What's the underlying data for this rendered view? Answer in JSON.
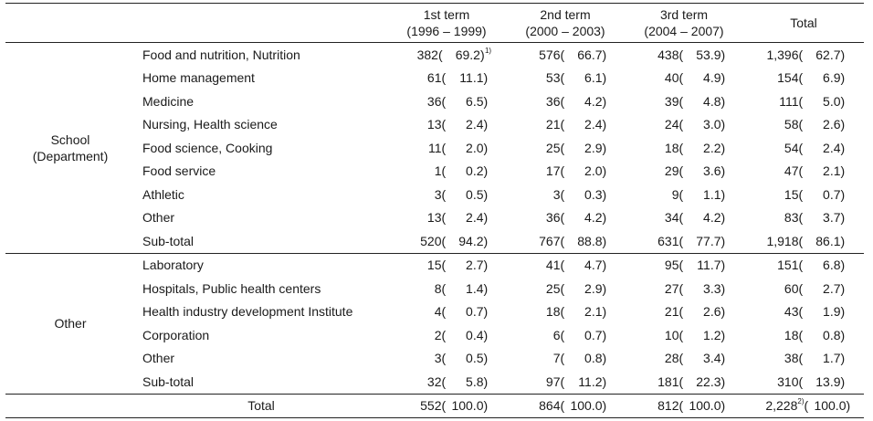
{
  "header": {
    "cols": [
      {
        "line1": "1st term",
        "line2": "(1996 – 1999)"
      },
      {
        "line1": "2nd term",
        "line2": "(2000 – 2003)"
      },
      {
        "line1": "3rd term",
        "line2": "(2004 – 2007)"
      },
      {
        "line1": "Total",
        "line2": ""
      }
    ]
  },
  "groups": [
    {
      "label_line1": "School",
      "label_line2": "(Department)",
      "rows": [
        {
          "item": "Food and nutrition, Nutrition",
          "cells": [
            [
              "382",
              "69.2",
              "1)"
            ],
            [
              "576",
              "66.7"
            ],
            [
              "438",
              "53.9"
            ],
            [
              "1,396",
              "62.7"
            ]
          ]
        },
        {
          "item": "Home management",
          "cells": [
            [
              "61",
              "11.1"
            ],
            [
              "53",
              "6.1"
            ],
            [
              "40",
              "4.9"
            ],
            [
              "154",
              "6.9"
            ]
          ]
        },
        {
          "item": "Medicine",
          "cells": [
            [
              "36",
              "6.5"
            ],
            [
              "36",
              "4.2"
            ],
            [
              "39",
              "4.8"
            ],
            [
              "111",
              "5.0"
            ]
          ]
        },
        {
          "item": "Nursing, Health science",
          "cells": [
            [
              "13",
              "2.4"
            ],
            [
              "21",
              "2.4"
            ],
            [
              "24",
              "3.0"
            ],
            [
              "58",
              "2.6"
            ]
          ]
        },
        {
          "item": "Food science, Cooking",
          "cells": [
            [
              "11",
              "2.0"
            ],
            [
              "25",
              "2.9"
            ],
            [
              "18",
              "2.2"
            ],
            [
              "54",
              "2.4"
            ]
          ]
        },
        {
          "item": "Food service",
          "cells": [
            [
              "1",
              "0.2"
            ],
            [
              "17",
              "2.0"
            ],
            [
              "29",
              "3.6"
            ],
            [
              "47",
              "2.1"
            ]
          ]
        },
        {
          "item": "Athletic",
          "cells": [
            [
              "3",
              "0.5"
            ],
            [
              "3",
              "0.3"
            ],
            [
              "9",
              "1.1"
            ],
            [
              "15",
              "0.7"
            ]
          ]
        },
        {
          "item": "Other",
          "cells": [
            [
              "13",
              "2.4"
            ],
            [
              "36",
              "4.2"
            ],
            [
              "34",
              "4.2"
            ],
            [
              "83",
              "3.7"
            ]
          ]
        },
        {
          "item": "Sub-total",
          "cells": [
            [
              "520",
              "94.2"
            ],
            [
              "767",
              "88.8"
            ],
            [
              "631",
              "77.7"
            ],
            [
              "1,918",
              "86.1"
            ]
          ]
        }
      ]
    },
    {
      "label_line1": "Other",
      "label_line2": "",
      "rows": [
        {
          "item": "Laboratory",
          "cells": [
            [
              "15",
              "2.7"
            ],
            [
              "41",
              "4.7"
            ],
            [
              "95",
              "11.7"
            ],
            [
              "151",
              "6.8"
            ]
          ]
        },
        {
          "item": "Hospitals, Public health centers",
          "cells": [
            [
              "8",
              "1.4"
            ],
            [
              "25",
              "2.9"
            ],
            [
              "27",
              "3.3"
            ],
            [
              "60",
              "2.7"
            ]
          ]
        },
        {
          "item": "Health industry development Institute",
          "cells": [
            [
              "4",
              "0.7"
            ],
            [
              "18",
              "2.1"
            ],
            [
              "21",
              "2.6"
            ],
            [
              "43",
              "1.9"
            ]
          ]
        },
        {
          "item": "Corporation",
          "cells": [
            [
              "2",
              "0.4"
            ],
            [
              "6",
              "0.7"
            ],
            [
              "10",
              "1.2"
            ],
            [
              "18",
              "0.8"
            ]
          ]
        },
        {
          "item": "Other",
          "cells": [
            [
              "3",
              "0.5"
            ],
            [
              "7",
              "0.8"
            ],
            [
              "28",
              "3.4"
            ],
            [
              "38",
              "1.7"
            ]
          ]
        },
        {
          "item": "Sub-total",
          "cells": [
            [
              "32",
              "5.8"
            ],
            [
              "97",
              "11.2"
            ],
            [
              "181",
              "22.3"
            ],
            [
              "310",
              "13.9"
            ]
          ]
        }
      ]
    }
  ],
  "total": {
    "label": "Total",
    "cells": [
      [
        "552",
        "100.0"
      ],
      [
        "864",
        "100.0"
      ],
      [
        "812",
        "100.0"
      ],
      [
        "2,228",
        "100.0",
        "2)"
      ]
    ]
  }
}
